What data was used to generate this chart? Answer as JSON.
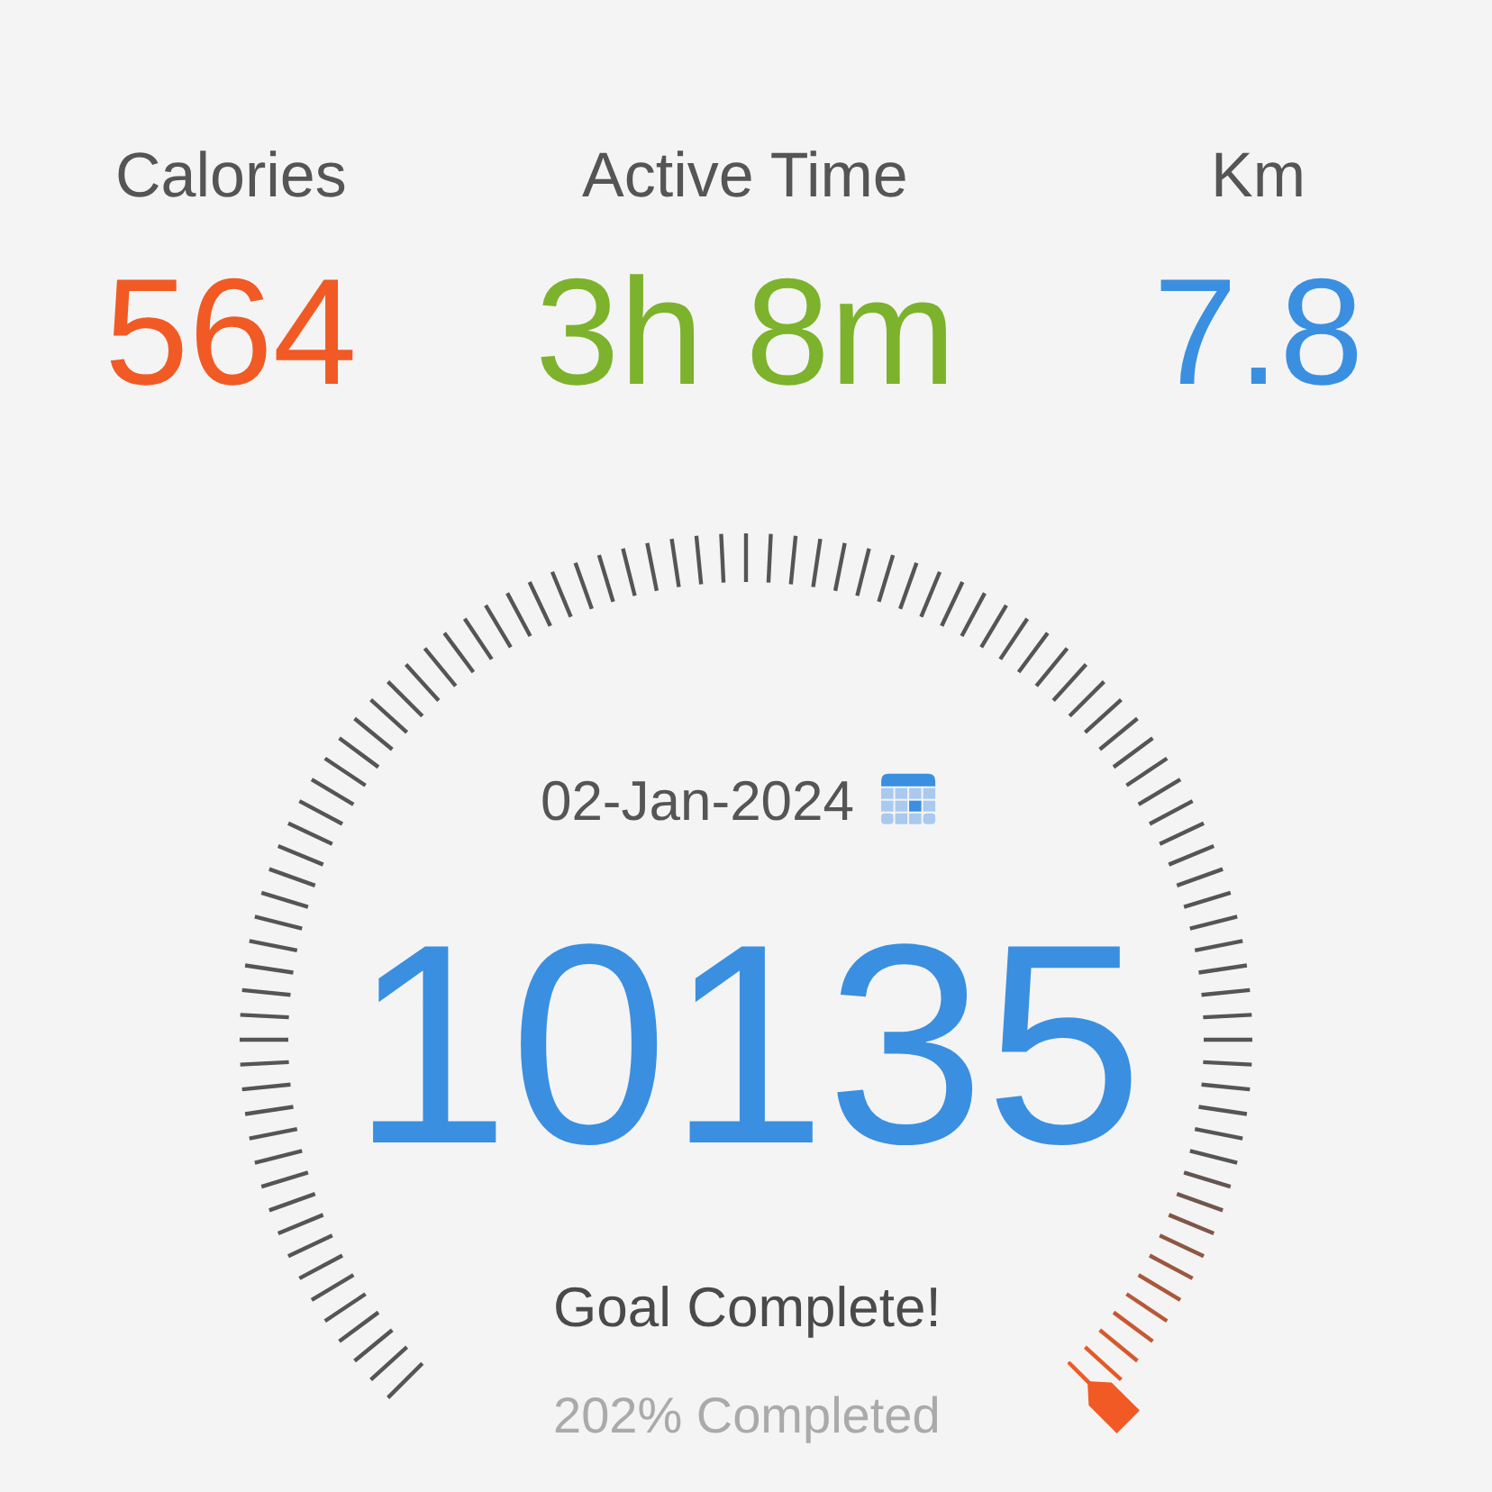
{
  "chart_data": {
    "type": "other",
    "categories": [
      "Calories",
      "Active Time",
      "Km"
    ],
    "values": [
      564,
      null,
      7.8
    ],
    "value_labels": [
      "564",
      "3h 8m",
      "7.8"
    ],
    "colors": [
      "#f15a24",
      "#7db22c",
      "#3a8fe0"
    ],
    "title": "02-Jan-2024",
    "annotations": [
      "10135",
      "Goal Complete!",
      "202% Completed"
    ]
  }
}
